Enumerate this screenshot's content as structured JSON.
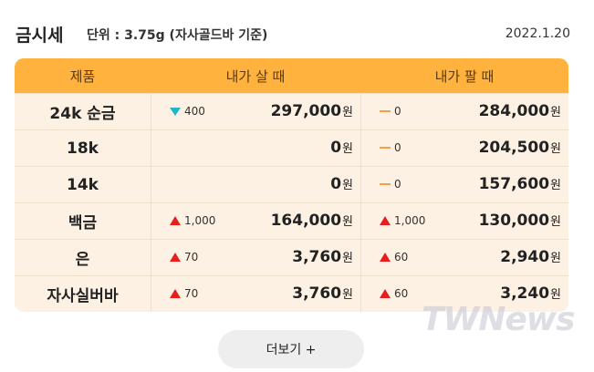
{
  "header": {
    "title": "금시세",
    "unit_note": "단위 : 3.75g (자사골드바 기준)",
    "date": "2022.1.20"
  },
  "table": {
    "columns": [
      "제품",
      "내가 살 때",
      "내가 팔 때"
    ],
    "currency": "원",
    "rows": [
      {
        "name": "24k 순금",
        "buy": {
          "trend": "down",
          "change": "400",
          "price": "297,000"
        },
        "sell": {
          "trend": "flat",
          "change": "0",
          "price": "284,000"
        }
      },
      {
        "name": "18k",
        "buy": {
          "trend": null,
          "change": null,
          "price": "0"
        },
        "sell": {
          "trend": "flat",
          "change": "0",
          "price": "204,500"
        }
      },
      {
        "name": "14k",
        "buy": {
          "trend": null,
          "change": null,
          "price": "0"
        },
        "sell": {
          "trend": "flat",
          "change": "0",
          "price": "157,600"
        }
      },
      {
        "name": "백금",
        "buy": {
          "trend": "up",
          "change": "1,000",
          "price": "164,000"
        },
        "sell": {
          "trend": "up",
          "change": "1,000",
          "price": "130,000"
        }
      },
      {
        "name": "은",
        "buy": {
          "trend": "up",
          "change": "70",
          "price": "3,760"
        },
        "sell": {
          "trend": "up",
          "change": "60",
          "price": "2,940"
        }
      },
      {
        "name": "자사실버바",
        "buy": {
          "trend": "up",
          "change": "70",
          "price": "3,760"
        },
        "sell": {
          "trend": "up",
          "change": "60",
          "price": "3,240"
        }
      }
    ]
  },
  "more_button": "더보기 +",
  "watermark": "TWNews"
}
